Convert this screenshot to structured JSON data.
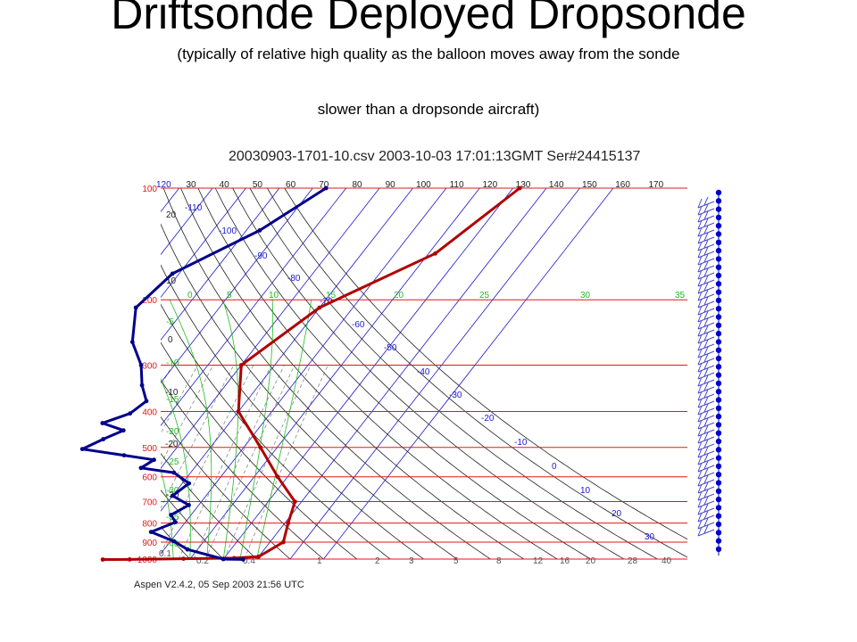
{
  "slide": {
    "title": "Driftsonde Deployed Dropsonde",
    "subtitle_line1": "(typically of relative high quality as the balloon moves away from the sonde",
    "subtitle_line2": "slower than a dropsonde aircraft)"
  },
  "chart_data": {
    "type": "line",
    "header": "20030903-1701-10.csv 2003-10-03 17:01:13GMT  Ser#24415137",
    "footer": "Aspen V2.4.2, 05 Sep 2003  21:56 UTC",
    "pressure_labels": [
      "100",
      "200",
      "300",
      "400",
      "500",
      "600",
      "700",
      "800",
      "900",
      "1000"
    ],
    "isotherm_labels_top": [
      "120",
      "30",
      "40",
      "50",
      "60",
      "70",
      "80",
      "90",
      "100",
      "110",
      "120",
      "130",
      "140",
      "150",
      "160",
      "170"
    ],
    "dry_adiabat_labels": [
      "20",
      "10",
      "0",
      "-10",
      "-20",
      "-30"
    ],
    "temperature_labels": [
      "-110",
      "-100",
      "-90",
      "-80",
      "-70",
      "-60",
      "-50",
      "-40",
      "-30",
      "-20",
      "-10",
      "0",
      "10",
      "20",
      "30"
    ],
    "moist_adiabat_labels": [
      "0",
      "5",
      "10",
      "15",
      "20",
      "25",
      "30",
      "35"
    ],
    "moist_adiabat_labels_left": [
      "-5",
      "-10",
      "-15",
      "-20",
      "-25",
      "-30",
      "-35",
      "-40"
    ],
    "mixing_ratio_labels": [
      "0.1",
      "0.2",
      "0.4",
      "1",
      "2",
      "3",
      "5",
      "8",
      "12",
      "16",
      "20",
      "28",
      "40"
    ],
    "series": [
      {
        "color": "#b00000",
        "points": [
          [
            142,
            100
          ],
          [
            132,
            150
          ],
          [
            110,
            210
          ],
          [
            100,
            300
          ],
          [
            110,
            400
          ],
          [
            125,
            500
          ],
          [
            137,
            600
          ],
          [
            148,
            700
          ],
          [
            151,
            800
          ],
          [
            154,
            900
          ],
          [
            150,
            985
          ],
          [
            143,
            994
          ],
          [
            128,
            998
          ],
          [
            112,
            1002
          ],
          [
            104,
            1003
          ]
        ]
      },
      {
        "color": "#00008b",
        "points": [
          [
            84,
            100
          ],
          [
            74,
            130
          ],
          [
            58,
            170
          ],
          [
            55,
            210
          ],
          [
            62,
            260
          ],
          [
            70,
            300
          ],
          [
            75,
            340
          ],
          [
            80,
            375
          ],
          [
            78,
            405
          ],
          [
            72,
            430
          ],
          [
            80,
            450
          ],
          [
            76,
            475
          ],
          [
            72,
            505
          ],
          [
            86,
            525
          ],
          [
            96,
            540
          ],
          [
            94,
            568
          ],
          [
            105,
            585
          ],
          [
            112,
            625
          ],
          [
            110,
            675
          ],
          [
            117,
            715
          ],
          [
            114,
            760
          ],
          [
            117,
            795
          ],
          [
            112,
            845
          ],
          [
            121,
            895
          ],
          [
            127,
            942
          ],
          [
            140,
            1000
          ],
          [
            146,
            1002
          ]
        ]
      }
    ],
    "colors": {
      "isobar": "#e01818",
      "isotherm": "#1a1acd",
      "dry_adiabat": "#222222",
      "moist_adiabat": "#22bb22",
      "mixing_ratio": "#8a8a8a",
      "wind_barb": "#4a4acc",
      "wind_dot": "#0000cc"
    }
  }
}
